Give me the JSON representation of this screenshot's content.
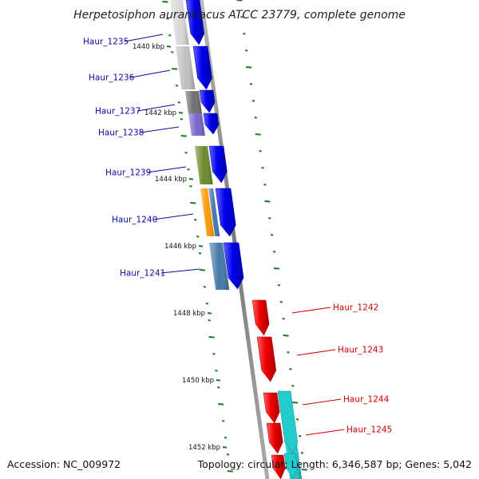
{
  "header": {
    "title": "Herpetosiphon aurantiacus ATCC 23779, complete genome"
  },
  "footer": {
    "accession": "Accession: NC_009972",
    "topology": "Topology: circular; Length: 6,346,587 bp; Genes: 5,042"
  },
  "colors": {
    "forward": "#0000ee",
    "reverse": "#ee0000",
    "backbone": "#888888",
    "ticks": "#1f7a1f",
    "label_fwd": "#0a0aa0",
    "label_rev": "#cc0000"
  },
  "ruler": {
    "ticks": [
      {
        "kbp": 1440,
        "label": "1440 kbp"
      },
      {
        "kbp": 1442,
        "label": "1442 kbp"
      },
      {
        "kbp": 1444,
        "label": "1444 kbp"
      },
      {
        "kbp": 1446,
        "label": "1446 kbp"
      },
      {
        "kbp": 1448,
        "label": "1448 kbp"
      },
      {
        "kbp": 1450,
        "label": "1450 kbp"
      },
      {
        "kbp": 1452,
        "label": "1452 kbp"
      }
    ]
  },
  "genes": [
    {
      "name": "Haur_1235",
      "strand": "+",
      "cog_color": "#d8d8d8"
    },
    {
      "name": "Haur_1236",
      "strand": "+",
      "cog_color": "#c0c0c0"
    },
    {
      "name": "Haur_1237",
      "strand": "+",
      "cog_color": "#707070"
    },
    {
      "name": "Haur_1238",
      "strand": "+",
      "cog_color": "#7766cc"
    },
    {
      "name": "Haur_1239",
      "strand": "+",
      "cog_color": "#6a8a2a"
    },
    {
      "name": "Haur_1240",
      "strand": "+",
      "cog_color": "#ff9900"
    },
    {
      "name": "Haur_1241",
      "strand": "+",
      "cog_color": "#4477aa"
    },
    {
      "name": "Haur_1242",
      "strand": "-",
      "cog_color": ""
    },
    {
      "name": "Haur_1243",
      "strand": "-",
      "cog_color": ""
    },
    {
      "name": "Haur_1244",
      "strand": "-",
      "cog_color": "#22cccc"
    },
    {
      "name": "Haur_1245",
      "strand": "-",
      "cog_color": "#22cccc"
    }
  ]
}
